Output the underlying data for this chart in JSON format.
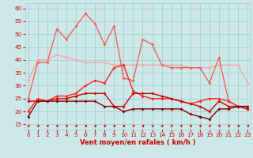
{
  "x": [
    0,
    1,
    2,
    3,
    4,
    5,
    6,
    7,
    8,
    9,
    10,
    11,
    12,
    13,
    14,
    15,
    16,
    17,
    18,
    19,
    20,
    21,
    22,
    23
  ],
  "series": [
    {
      "y": [
        32,
        40,
        40,
        42,
        41,
        40,
        39,
        39,
        39,
        38,
        38,
        38,
        38,
        38,
        38,
        38,
        38,
        37,
        37,
        37,
        38,
        38,
        38,
        31
      ],
      "color": "#f0a8a8",
      "lw": 1.0,
      "marker": "D",
      "ms": 2.0
    },
    {
      "y": [
        25,
        39,
        39,
        52,
        48,
        53,
        58,
        54,
        46,
        53,
        33,
        32,
        48,
        46,
        38,
        37,
        37,
        37,
        37,
        31,
        41,
        24,
        22,
        21
      ],
      "color": "#f06060",
      "lw": 1.0,
      "marker": "D",
      "ms": 2.0
    },
    {
      "y": [
        20,
        25,
        24,
        26,
        26,
        27,
        30,
        32,
        31,
        37,
        38,
        28,
        26,
        25,
        25,
        25,
        24,
        23,
        24,
        25,
        25,
        24,
        22,
        22
      ],
      "color": "#ff2020",
      "lw": 1.0,
      "marker": "D",
      "ms": 2.0
    },
    {
      "y": [
        24,
        24,
        24,
        25,
        25,
        26,
        27,
        27,
        27,
        22,
        22,
        27,
        27,
        27,
        26,
        25,
        24,
        23,
        22,
        20,
        24,
        22,
        22,
        21
      ],
      "color": "#cc0000",
      "lw": 1.0,
      "marker": "D",
      "ms": 2.0
    },
    {
      "y": [
        18,
        24,
        24,
        24,
        24,
        24,
        24,
        24,
        22,
        22,
        20,
        21,
        21,
        21,
        21,
        21,
        21,
        19,
        18,
        17,
        21,
        21,
        22,
        22
      ],
      "color": "#880000",
      "lw": 1.0,
      "marker": "D",
      "ms": 2.0
    }
  ],
  "xlabel": "Vent moyen/en rafales ( km/h )",
  "xlim": [
    -0.3,
    23.3
  ],
  "ylim": [
    13,
    62
  ],
  "yticks": [
    15,
    20,
    25,
    30,
    35,
    40,
    45,
    50,
    55,
    60
  ],
  "xticks": [
    0,
    1,
    2,
    3,
    4,
    5,
    6,
    7,
    8,
    9,
    10,
    11,
    12,
    13,
    14,
    15,
    16,
    17,
    18,
    19,
    20,
    21,
    22,
    23
  ],
  "bg_color": "#cce8e8",
  "grid_color": "#aacece",
  "label_color": "#cc0000",
  "tick_color": "#cc0000",
  "arrow_color": "#cc0000"
}
